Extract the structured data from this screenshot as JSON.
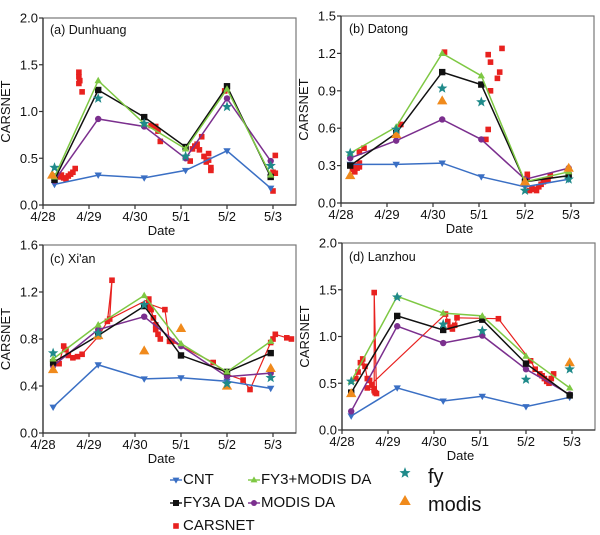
{
  "chart_data": [
    {
      "type": "line",
      "title": "(a) Dunhuang",
      "xlabel": "Date",
      "ylabel": "CARSNET",
      "xticks": [
        "4/28",
        "4/29",
        "4/30",
        "5/1",
        "5/2",
        "5/3"
      ],
      "xlim": [
        0,
        5.5
      ],
      "ylim": [
        0,
        2.0
      ],
      "yticks": [
        "0.0",
        "0.5",
        "1.0",
        "1.5",
        "2.0"
      ],
      "yticks_values": [
        0,
        0.5,
        1.0,
        1.5,
        2.0
      ],
      "series": [
        {
          "name": "CNT",
          "x": [
            0.25,
            1.2,
            2.2,
            3.1,
            4.0,
            4.95
          ],
          "values": [
            0.22,
            0.32,
            0.29,
            0.37,
            0.58,
            0.18
          ]
        },
        {
          "name": "FY3A DA",
          "x": [
            0.25,
            1.2,
            2.2,
            3.1,
            4.0,
            4.95
          ],
          "values": [
            0.27,
            1.23,
            0.94,
            0.62,
            1.27,
            0.3
          ]
        },
        {
          "name": "FY3+MODIS DA",
          "x": [
            0.25,
            1.2,
            2.2,
            3.1,
            4.0,
            4.95
          ],
          "values": [
            0.3,
            1.33,
            0.87,
            0.6,
            1.24,
            0.32
          ]
        },
        {
          "name": "MODIS DA",
          "x": [
            0.25,
            1.2,
            2.2,
            3.1,
            4.0,
            4.95
          ],
          "values": [
            0.26,
            0.92,
            0.84,
            0.5,
            1.14,
            0.47
          ]
        },
        {
          "name": "fy",
          "x": [
            0.25,
            1.2,
            2.2,
            3.1,
            4.0,
            4.95
          ],
          "values": [
            0.4,
            1.14,
            0.87,
            0.52,
            1.05,
            0.42
          ]
        },
        {
          "name": "modis",
          "x": [
            0.2
          ],
          "values": [
            0.32
          ]
        },
        {
          "name": "CARSNET",
          "x": [
            0.3,
            0.35,
            0.4,
            0.45,
            0.5,
            0.55,
            0.6,
            0.65,
            0.7,
            0.78,
            0.78,
            0.78,
            0.8,
            0.85,
            2.35,
            2.45,
            2.5,
            2.55,
            3.2,
            3.25,
            3.3,
            3.35,
            3.4,
            3.45,
            3.5,
            3.55,
            3.6,
            3.6,
            3.65,
            3.65,
            3.95,
            4.0,
            5.0,
            5.05,
            5.05,
            5.0
          ],
          "values": [
            0.31,
            0.3,
            0.32,
            0.29,
            0.28,
            0.31,
            0.33,
            0.35,
            0.39,
            1.42,
            1.37,
            1.3,
            1.33,
            1.21,
            0.85,
            0.84,
            0.79,
            0.68,
            0.47,
            0.6,
            0.63,
            0.65,
            0.59,
            0.73,
            0.52,
            0.46,
            0.55,
            0.48,
            0.4,
            0.37,
            1.22,
            1.25,
            0.15,
            0.53,
            0.34,
            0.35
          ],
          "connected": false
        }
      ]
    },
    {
      "type": "line",
      "title": "(b) Datong",
      "xlabel": "Date",
      "ylabel": "CARSNET",
      "xticks": [
        "4/28",
        "4/29",
        "4/30",
        "5/1",
        "5/2",
        "5/3"
      ],
      "xlim": [
        0,
        5.5
      ],
      "ylim": [
        0,
        1.5
      ],
      "yticks": [
        "0.0",
        "0.3",
        "0.6",
        "0.9",
        "1.2",
        "1.5"
      ],
      "yticks_values": [
        0,
        0.3,
        0.6,
        0.9,
        1.2,
        1.5
      ],
      "series": [
        {
          "name": "CNT",
          "x": [
            0.2,
            1.2,
            2.2,
            3.05,
            4.0,
            4.95
          ],
          "values": [
            0.31,
            0.31,
            0.32,
            0.21,
            0.13,
            0.19
          ]
        },
        {
          "name": "FY3A DA",
          "x": [
            0.2,
            1.2,
            2.2,
            3.05,
            4.0,
            4.95
          ],
          "values": [
            0.3,
            0.56,
            1.05,
            0.95,
            0.17,
            0.22
          ]
        },
        {
          "name": "FY3+MODIS DA",
          "x": [
            0.2,
            1.2,
            2.2,
            3.05,
            4.0,
            4.95
          ],
          "values": [
            0.4,
            0.61,
            1.2,
            1.02,
            0.17,
            0.25
          ]
        },
        {
          "name": "MODIS DA",
          "x": [
            0.2,
            1.2,
            2.2,
            3.05,
            4.0,
            4.95
          ],
          "values": [
            0.36,
            0.5,
            0.67,
            0.51,
            0.19,
            0.28
          ]
        },
        {
          "name": "fy",
          "x": [
            0.2,
            1.2,
            2.2,
            3.05,
            4.0,
            4.95
          ],
          "values": [
            0.4,
            0.59,
            0.92,
            0.81,
            0.1,
            0.19
          ]
        },
        {
          "name": "modis",
          "x": [
            0.2,
            1.2,
            2.2,
            4.0,
            4.95
          ],
          "values": [
            0.22,
            0.55,
            0.82,
            0.17,
            0.28
          ]
        },
        {
          "name": "CARSNET",
          "x": [
            0.25,
            0.3,
            0.3,
            0.35,
            0.4,
            0.4,
            0.4,
            0.5,
            1.3,
            2.25,
            3.15,
            3.2,
            3.25,
            3.25,
            3.2,
            3.4,
            3.45,
            3.5,
            4.05,
            4.05,
            4.1,
            4.15,
            4.2,
            4.25,
            4.3,
            4.35,
            4.4,
            4.45,
            4.5,
            4.55,
            4.95
          ],
          "values": [
            0.27,
            0.25,
            0.3,
            0.28,
            0.32,
            0.29,
            0.41,
            0.44,
            0.63,
            1.21,
            0.51,
            0.59,
            0.9,
            1.13,
            1.19,
            1.0,
            1.05,
            1.24,
            0.23,
            0.2,
            0.1,
            0.12,
            0.11,
            0.1,
            0.13,
            0.15,
            0.17,
            0.18,
            0.19,
            0.22,
            0.21
          ],
          "connected": false
        }
      ]
    },
    {
      "type": "line",
      "title": "(c) Xi'an",
      "xlabel": "Date",
      "ylabel": "CARSNET",
      "xticks": [
        "4/28",
        "4/29",
        "4/30",
        "5/1",
        "5/2",
        "5/3"
      ],
      "xlim": [
        0,
        5.5
      ],
      "ylim": [
        0,
        1.6
      ],
      "yticks": [
        "0.0",
        "0.4",
        "0.8",
        "1.2",
        "1.6"
      ],
      "yticks_values": [
        0,
        0.4,
        0.8,
        1.2,
        1.6
      ],
      "series": [
        {
          "name": "CNT",
          "x": [
            0.22,
            1.2,
            2.2,
            3.0,
            4.0,
            4.95
          ],
          "values": [
            0.22,
            0.58,
            0.46,
            0.47,
            0.44,
            0.38
          ]
        },
        {
          "name": "FY3A DA",
          "x": [
            0.22,
            1.2,
            2.2,
            3.0,
            4.0,
            4.95
          ],
          "values": [
            0.6,
            0.83,
            1.08,
            0.66,
            0.52,
            0.68
          ]
        },
        {
          "name": "FY3+MODIS DA",
          "x": [
            0.22,
            1.2,
            2.2,
            3.0,
            4.0,
            4.95
          ],
          "values": [
            0.63,
            0.92,
            1.17,
            0.76,
            0.52,
            0.78
          ]
        },
        {
          "name": "MODIS DA",
          "x": [
            0.22,
            1.2,
            2.2,
            3.0,
            4.0,
            4.95
          ],
          "values": [
            0.57,
            0.88,
            0.99,
            0.74,
            0.48,
            0.51
          ]
        },
        {
          "name": "fy",
          "x": [
            0.22,
            1.2,
            2.2,
            4.0,
            4.95
          ],
          "values": [
            0.68,
            0.85,
            1.09,
            0.42,
            0.47
          ]
        },
        {
          "name": "modis",
          "x": [
            0.22,
            1.2,
            2.2,
            3.0,
            4.0,
            4.95
          ],
          "values": [
            0.54,
            0.83,
            0.7,
            0.89,
            0.4,
            0.55
          ]
        },
        {
          "name": "CARSNET",
          "x": [
            0.35,
            0.45,
            0.5,
            0.55,
            0.65,
            0.75,
            0.85,
            1.2,
            1.4,
            1.5,
            1.45,
            2.3,
            2.3,
            2.35,
            2.4,
            2.45,
            2.5,
            2.45,
            2.55,
            2.3,
            2.65,
            2.75,
            2.8,
            3.7,
            4.0,
            4.35,
            4.5,
            4.95,
            5.0,
            5.05,
            5.3,
            5.4
          ],
          "values": [
            0.59,
            0.74,
            0.71,
            0.66,
            0.64,
            0.65,
            0.67,
            0.82,
            0.95,
            1.3,
            0.97,
            1.14,
            1.07,
            1.05,
            0.98,
            0.92,
            0.84,
            0.88,
            0.8,
            1.1,
            1.05,
            0.78,
            0.78,
            0.6,
            0.5,
            0.45,
            0.37,
            0.77,
            0.8,
            0.84,
            0.81,
            0.8
          ],
          "connected": true
        }
      ]
    },
    {
      "type": "line",
      "title": "(d) Lanzhou",
      "xlabel": "Date",
      "ylabel": "CARSNET",
      "xticks": [
        "4/28",
        "4/29",
        "4/30",
        "5/1",
        "5/2",
        "5/3"
      ],
      "xlim": [
        0,
        5.5
      ],
      "ylim": [
        0,
        2.0
      ],
      "yticks": [
        "0.0",
        "0.5",
        "1.0",
        "1.5",
        "2.0"
      ],
      "yticks_values": [
        0,
        0.5,
        1.0,
        1.5,
        2.0
      ],
      "series": [
        {
          "name": "CNT",
          "x": [
            0.2,
            1.2,
            2.2,
            3.05,
            4.0,
            4.95
          ],
          "values": [
            0.15,
            0.45,
            0.31,
            0.36,
            0.25,
            0.35
          ]
        },
        {
          "name": "FY3A DA",
          "x": [
            0.2,
            1.2,
            2.2,
            3.05,
            4.0,
            4.95
          ],
          "values": [
            0.4,
            1.22,
            1.07,
            1.18,
            0.71,
            0.37
          ]
        },
        {
          "name": "FY3+MODIS DA",
          "x": [
            0.2,
            1.2,
            2.2,
            3.05,
            4.0,
            4.95
          ],
          "values": [
            0.52,
            1.43,
            1.25,
            1.22,
            0.79,
            0.45
          ]
        },
        {
          "name": "MODIS DA",
          "x": [
            0.2,
            1.2,
            2.2,
            3.05,
            4.0,
            4.95
          ],
          "values": [
            0.2,
            1.11,
            0.93,
            1.01,
            0.65,
            0.38
          ]
        },
        {
          "name": "fy",
          "x": [
            0.2,
            1.2,
            2.2,
            3.05,
            4.0,
            4.95
          ],
          "values": [
            0.52,
            1.42,
            1.13,
            1.06,
            0.54,
            0.65
          ]
        },
        {
          "name": "modis",
          "x": [
            0.2,
            4.95
          ],
          "values": [
            0.39,
            0.72
          ]
        },
        {
          "name": "CARSNET",
          "x": [
            0.3,
            0.35,
            0.4,
            0.45,
            0.5,
            0.55,
            0.6,
            0.65,
            0.7,
            0.72,
            0.75,
            0.7,
            0.7,
            0.55,
            2.25,
            2.3,
            2.35,
            2.4,
            2.45,
            2.5,
            3.4,
            4.1,
            4.2,
            4.3,
            4.35,
            4.4,
            4.45,
            4.5,
            4.55,
            4.6
          ],
          "values": [
            0.55,
            0.62,
            0.72,
            0.76,
            0.68,
            0.55,
            0.53,
            0.48,
            0.44,
            0.4,
            0.39,
            1.47,
            0.42,
            0.45,
            1.24,
            1.16,
            1.1,
            1.08,
            1.12,
            1.2,
            1.19,
            0.74,
            0.65,
            0.6,
            0.58,
            0.55,
            0.52,
            0.5,
            0.55,
            0.6
          ],
          "connected": true
        }
      ]
    }
  ],
  "legend": {
    "placement": "bottom-center",
    "items": [
      {
        "name": "CNT",
        "label": "CNT",
        "color": "#3a6fc4",
        "marker": "triangle-down"
      },
      {
        "name": "FY3+MODIS DA",
        "label": "FY3+MODIS DA",
        "color": "#7ec843",
        "marker": "triangle-up"
      },
      {
        "name": "FY3A DA",
        "label": "FY3A DA",
        "color": "#111111",
        "marker": "square"
      },
      {
        "name": "MODIS DA",
        "label": "MODIS DA",
        "color": "#7b2f8e",
        "marker": "circle"
      },
      {
        "name": "CARSNET",
        "label": "CARSNET",
        "color": "#e8211f",
        "marker": "square"
      },
      {
        "name": "fy",
        "label": "fy",
        "color": "#1f8a8a",
        "marker": "star"
      },
      {
        "name": "modis",
        "label": "modis",
        "color": "#f08a1c",
        "marker": "triangle-up"
      }
    ]
  },
  "colors": {
    "CNT": "#3a6fc4",
    "FY3A DA": "#111111",
    "FY3+MODIS DA": "#7ec843",
    "MODIS DA": "#7b2f8e",
    "CARSNET": "#e8211f",
    "fy": "#1f8a8a",
    "modis": "#f08a1c"
  }
}
